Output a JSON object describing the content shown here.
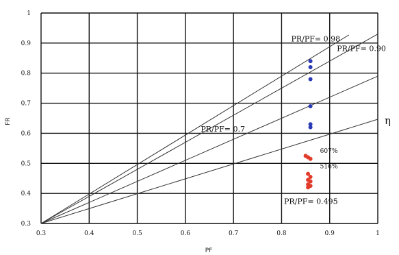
{
  "chart_data": {
    "type": "scatter",
    "xlabel": "PF",
    "ylabel": "FR",
    "xlim": [
      0.3,
      1.0
    ],
    "ylim": [
      0.3,
      1.0
    ],
    "x_ticks": [
      "0.3",
      "0.4",
      "0.5",
      "0.6",
      "0.7",
      "0.8",
      "0.9",
      "1"
    ],
    "y_ticks": [
      "0.3",
      "0.4",
      "0.5",
      "0.6",
      "0.7",
      "0.8",
      "0.9",
      "1"
    ],
    "grid": true,
    "reference_lines": [
      {
        "label": "PR/PF= 0.98",
        "slope": 0.98,
        "x_end": 0.94
      },
      {
        "label": "PR/PF= 0.90",
        "slope": 0.9,
        "x_end": 1.0
      },
      {
        "label": "PR/PF= 0.7",
        "slope": 0.7,
        "x_end": 1.0
      },
      {
        "label": "PR/PF= 0.495",
        "slope": 0.495,
        "x_end": 1.0
      }
    ],
    "series": [
      {
        "color": "#2a3bb5",
        "points": [
          {
            "x": 0.86,
            "y": 0.84
          },
          {
            "x": 0.86,
            "y": 0.82
          },
          {
            "x": 0.86,
            "y": 0.78
          },
          {
            "x": 0.86,
            "y": 0.69
          },
          {
            "x": 0.86,
            "y": 0.63
          },
          {
            "x": 0.86,
            "y": 0.62
          }
        ]
      },
      {
        "color": "#e23b2a",
        "points": [
          {
            "x": 0.85,
            "y": 0.525
          },
          {
            "x": 0.855,
            "y": 0.52
          },
          {
            "x": 0.86,
            "y": 0.515
          },
          {
            "x": 0.855,
            "y": 0.465
          },
          {
            "x": 0.86,
            "y": 0.455
          },
          {
            "x": 0.855,
            "y": 0.445
          },
          {
            "x": 0.86,
            "y": 0.44
          },
          {
            "x": 0.855,
            "y": 0.43
          },
          {
            "x": 0.86,
            "y": 0.425
          },
          {
            "x": 0.855,
            "y": 0.42
          }
        ]
      }
    ],
    "annotations": [
      {
        "text": "607%",
        "x": 0.88,
        "y": 0.535
      },
      {
        "text": "516%",
        "x": 0.88,
        "y": 0.483
      }
    ],
    "side_symbol": "η"
  }
}
